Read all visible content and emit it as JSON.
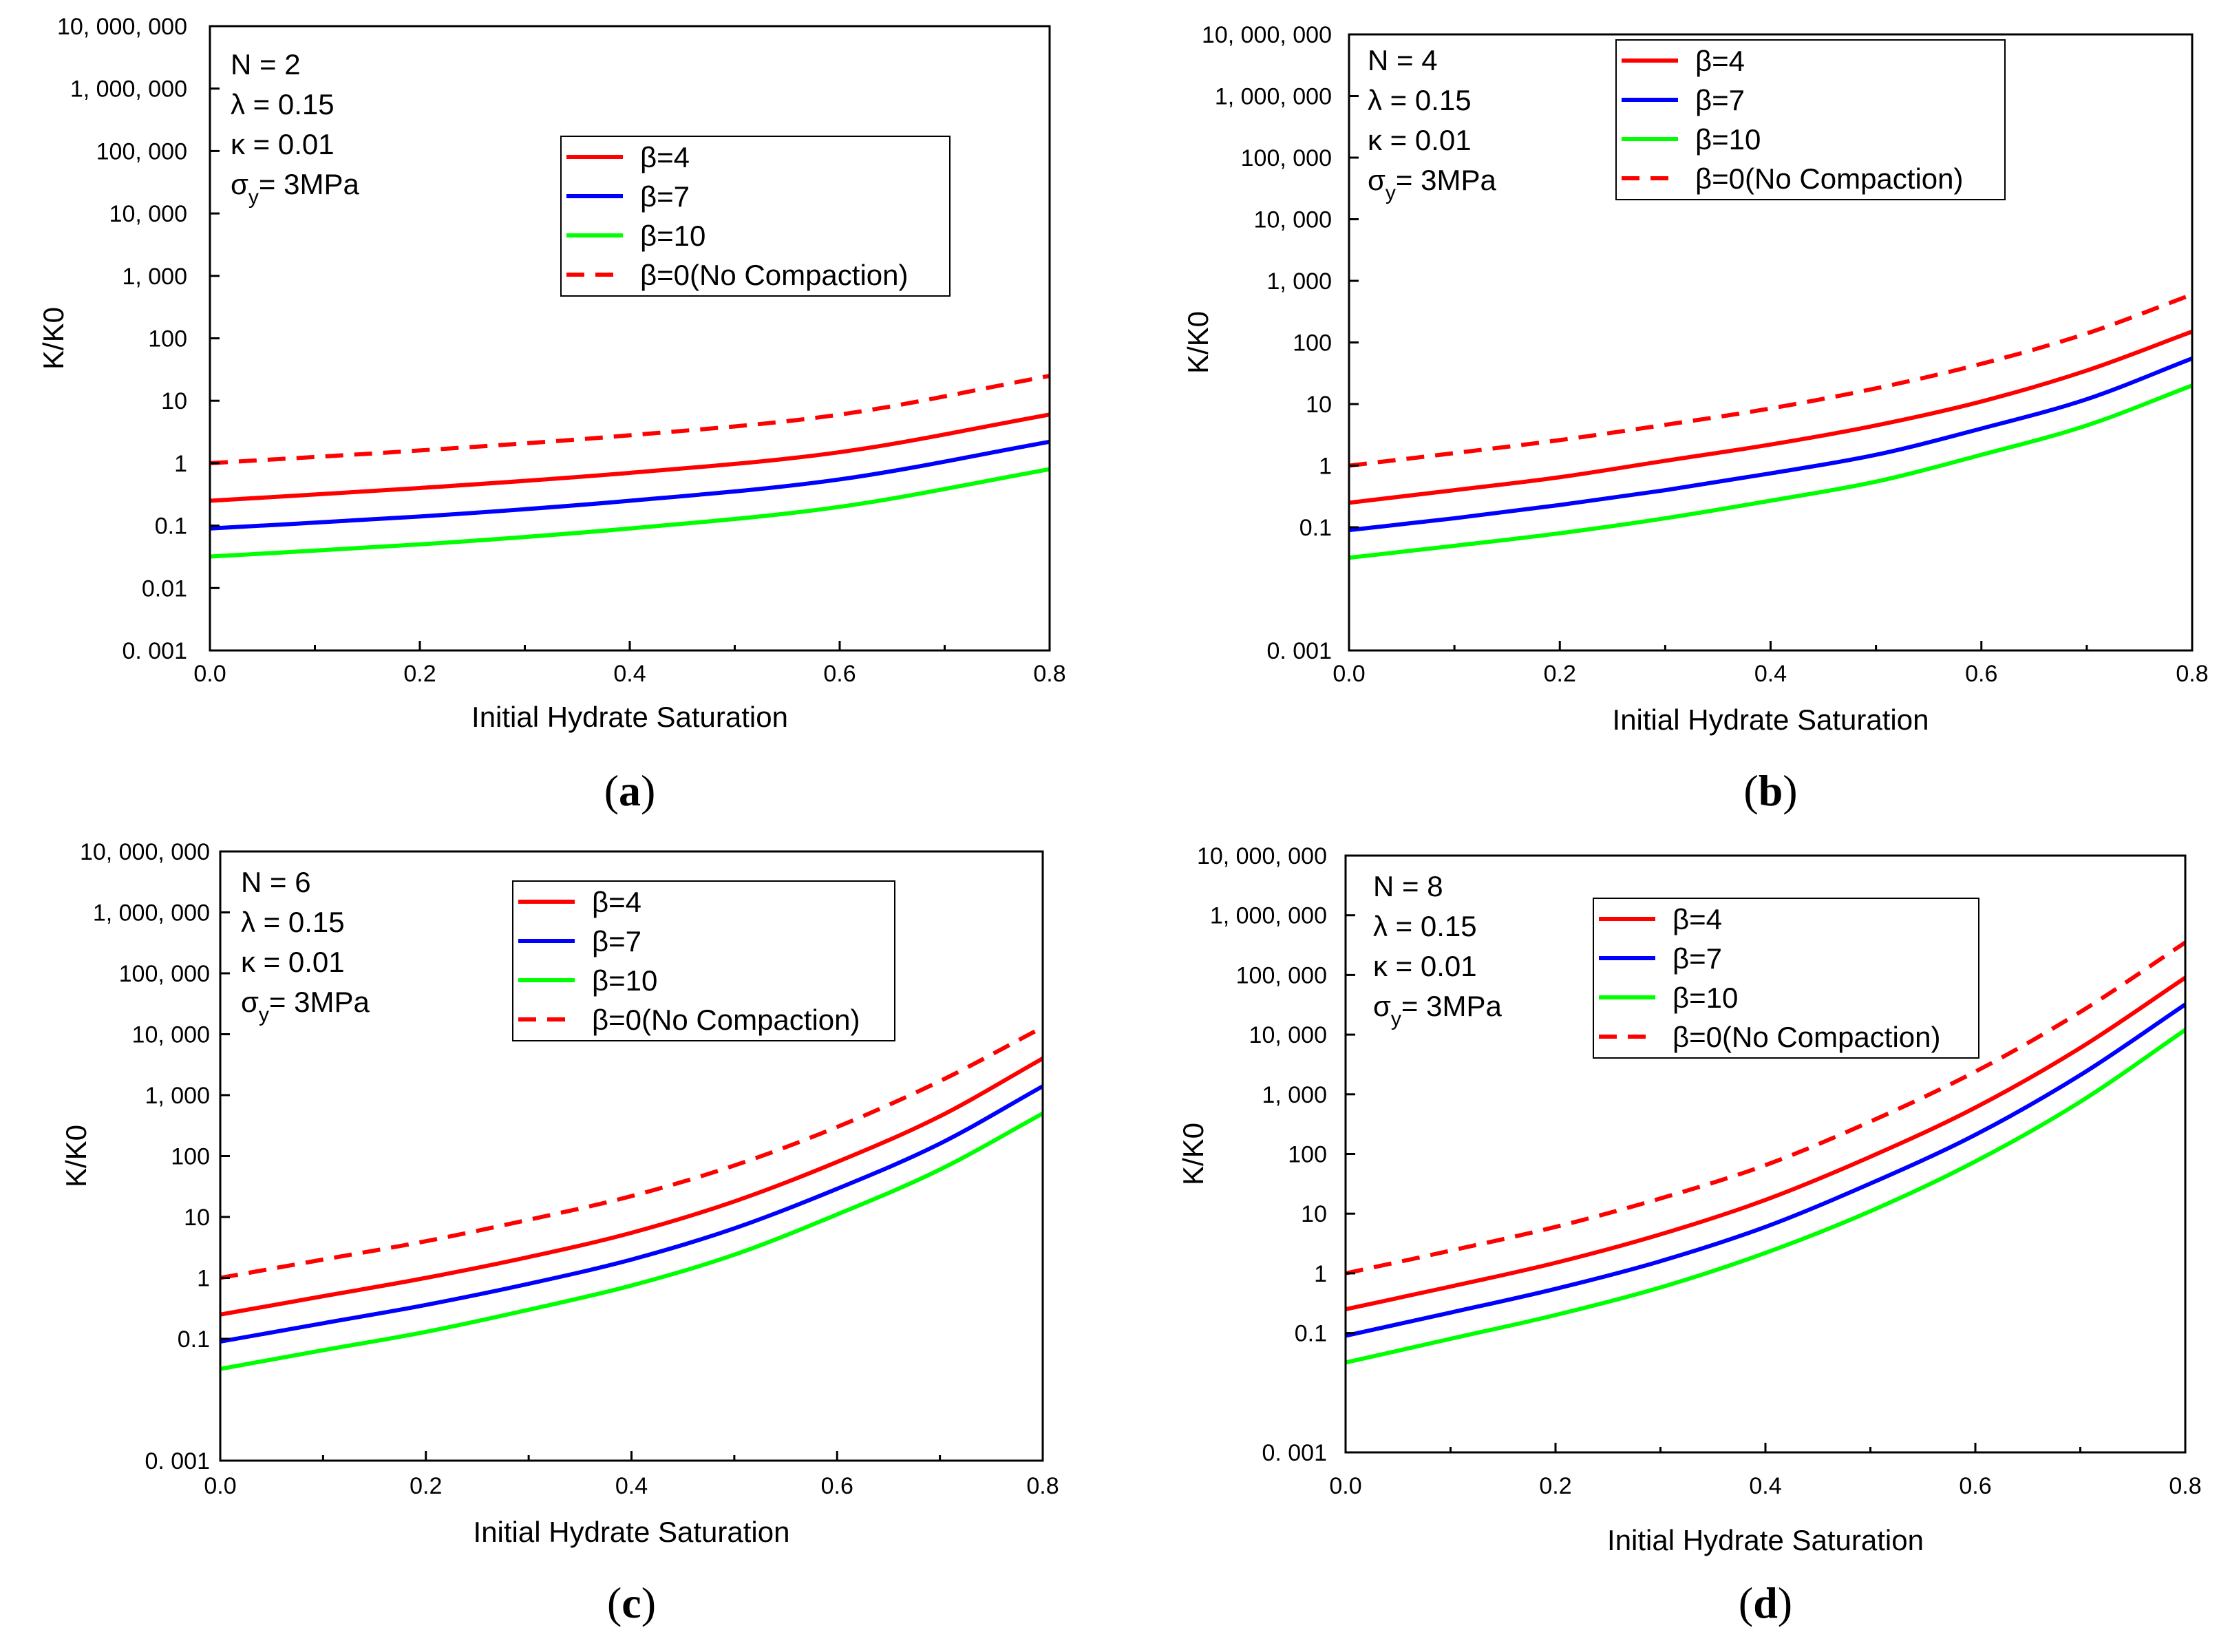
{
  "chart_data": [
    {
      "type": "line",
      "caption_letter": "a",
      "xlabel": "Initial Hydrate Saturation",
      "ylabel": "K/K0",
      "xlim": [
        0,
        0.8
      ],
      "ylim": [
        0.001,
        10000000
      ],
      "y_scale": "log",
      "x_ticks": [
        "0.0",
        "0.2",
        "0.4",
        "0.6",
        "0.8"
      ],
      "y_ticks": [
        {
          "v": 0.001,
          "label": "0. 001"
        },
        {
          "v": 0.01,
          "label": "0.01"
        },
        {
          "v": 0.1,
          "label": "0.1"
        },
        {
          "v": 1,
          "label": "1"
        },
        {
          "v": 10,
          "label": "10"
        },
        {
          "v": 100,
          "label": "100"
        },
        {
          "v": 1000,
          "label": "1, 000"
        },
        {
          "v": 10000,
          "label": "10, 000"
        },
        {
          "v": 100000,
          "label": "100, 000"
        },
        {
          "v": 1000000,
          "label": "1, 000, 000"
        },
        {
          "v": 10000000,
          "label": "10, 000, 000"
        }
      ],
      "params": {
        "N": "N = 2",
        "lambda": "λ  = 0.15",
        "kappa": "κ  = 0.01",
        "sigma": "σ",
        "sigma_sub": "y",
        "sigma_val": "= 3MPa"
      },
      "legend_position": "upper-middle",
      "x": [
        0,
        0.2,
        0.4,
        0.6,
        0.8
      ],
      "series": [
        {
          "name": "β=4",
          "color": "#ff0000",
          "dash": false,
          "values": [
            0.25,
            0.4,
            0.7,
            1.5,
            6
          ]
        },
        {
          "name": "β=7",
          "color": "#0000ff",
          "dash": false,
          "values": [
            0.09,
            0.14,
            0.25,
            0.55,
            2.2
          ]
        },
        {
          "name": "β=10",
          "color": "#00ff00",
          "dash": false,
          "values": [
            0.032,
            0.05,
            0.09,
            0.2,
            0.8
          ]
        },
        {
          "name": "β=0(No Compaction)",
          "color": "#ff0000",
          "dash": true,
          "values": [
            1,
            1.6,
            2.8,
            6,
            25
          ]
        }
      ]
    },
    {
      "type": "line",
      "caption_letter": "b",
      "xlabel": "Initial Hydrate Saturation",
      "ylabel": "K/K0",
      "xlim": [
        0,
        0.8
      ],
      "ylim": [
        0.001,
        10000000
      ],
      "y_scale": "log",
      "x_ticks": [
        "0.0",
        "0.2",
        "0.4",
        "0.6",
        "0.8"
      ],
      "y_ticks": [
        {
          "v": 0.001,
          "label": "0. 001"
        },
        {
          "v": 0.1,
          "label": "0.1"
        },
        {
          "v": 1,
          "label": "1"
        },
        {
          "v": 10,
          "label": "10"
        },
        {
          "v": 100,
          "label": "100"
        },
        {
          "v": 1000,
          "label": "1, 000"
        },
        {
          "v": 10000,
          "label": "10, 000"
        },
        {
          "v": 100000,
          "label": "100, 000"
        },
        {
          "v": 1000000,
          "label": "1, 000, 000"
        },
        {
          "v": 10000000,
          "label": "10, 000, 000"
        }
      ],
      "params": {
        "N": "N = 4",
        "lambda": "λ  = 0.15",
        "kappa": "κ  = 0.01",
        "sigma": "σ",
        "sigma_sub": "y",
        "sigma_val": "= 3MPa"
      },
      "legend_position": "top-right",
      "x": [
        0,
        0.1,
        0.2,
        0.3,
        0.4,
        0.5,
        0.6,
        0.7,
        0.8
      ],
      "series": [
        {
          "name": "β=4",
          "color": "#ff0000",
          "dash": false,
          "values": [
            0.25,
            0.4,
            0.65,
            1.2,
            2.2,
            4.5,
            11,
            35,
            150
          ]
        },
        {
          "name": "β=7",
          "color": "#0000ff",
          "dash": false,
          "values": [
            0.09,
            0.14,
            0.23,
            0.4,
            0.75,
            1.5,
            4,
            12,
            55
          ]
        },
        {
          "name": "β=10",
          "color": "#00ff00",
          "dash": false,
          "values": [
            0.032,
            0.05,
            0.08,
            0.14,
            0.27,
            0.55,
            1.5,
            4.5,
            20
          ]
        },
        {
          "name": "β=0(No Compaction)",
          "color": "#ff0000",
          "dash": true,
          "values": [
            1,
            1.6,
            2.6,
            4.6,
            8.5,
            18,
            45,
            140,
            600
          ]
        }
      ]
    },
    {
      "type": "line",
      "caption_letter": "c",
      "xlabel": "Initial Hydrate Saturation",
      "ylabel": "K/K0",
      "xlim": [
        0,
        0.8
      ],
      "ylim": [
        0.001,
        10000000
      ],
      "y_scale": "log",
      "x_ticks": [
        "0.0",
        "0.2",
        "0.4",
        "0.6",
        "0.8"
      ],
      "y_ticks": [
        {
          "v": 0.001,
          "label": "0. 001"
        },
        {
          "v": 0.1,
          "label": "0.1"
        },
        {
          "v": 1,
          "label": "1"
        },
        {
          "v": 10,
          "label": "10"
        },
        {
          "v": 100,
          "label": "100"
        },
        {
          "v": 1000,
          "label": "1, 000"
        },
        {
          "v": 10000,
          "label": "10, 000"
        },
        {
          "v": 100000,
          "label": "100, 000"
        },
        {
          "v": 1000000,
          "label": "1, 000, 000"
        },
        {
          "v": 10000000,
          "label": "10, 000, 000"
        }
      ],
      "params": {
        "N": "N = 6",
        "lambda": "λ  = 0.15",
        "kappa": "κ  = 0.01",
        "sigma": "σ",
        "sigma_sub": "y",
        "sigma_val": "= 3MPa"
      },
      "legend_position": "top-right",
      "x": [
        0,
        0.1,
        0.2,
        0.3,
        0.4,
        0.5,
        0.6,
        0.7,
        0.8
      ],
      "series": [
        {
          "name": "β=4",
          "color": "#ff0000",
          "dash": false,
          "values": [
            0.25,
            0.5,
            1,
            2.2,
            5.5,
            18,
            80,
            450,
            4000
          ]
        },
        {
          "name": "β=7",
          "color": "#0000ff",
          "dash": false,
          "values": [
            0.09,
            0.18,
            0.36,
            0.8,
            2,
            6.5,
            29,
            160,
            1400
          ]
        },
        {
          "name": "β=10",
          "color": "#00ff00",
          "dash": false,
          "values": [
            0.032,
            0.065,
            0.13,
            0.3,
            0.75,
            2.4,
            11,
            60,
            500
          ]
        },
        {
          "name": "β=0(No Compaction)",
          "color": "#ff0000",
          "dash": true,
          "values": [
            1,
            2,
            4,
            9,
            22,
            70,
            300,
            1700,
            13000
          ]
        }
      ]
    },
    {
      "type": "line",
      "caption_letter": "d",
      "xlabel": "Initial Hydrate Saturation",
      "ylabel": "K/K0",
      "xlim": [
        0,
        0.8
      ],
      "ylim": [
        0.001,
        10000000
      ],
      "y_scale": "log",
      "x_ticks": [
        "0.0",
        "0.2",
        "0.4",
        "0.6",
        "0.8"
      ],
      "y_ticks": [
        {
          "v": 0.001,
          "label": "0. 001"
        },
        {
          "v": 0.1,
          "label": "0.1"
        },
        {
          "v": 1,
          "label": "1"
        },
        {
          "v": 10,
          "label": "10"
        },
        {
          "v": 100,
          "label": "100"
        },
        {
          "v": 1000,
          "label": "1, 000"
        },
        {
          "v": 10000,
          "label": "10, 000"
        },
        {
          "v": 100000,
          "label": "100, 000"
        },
        {
          "v": 1000000,
          "label": "1, 000, 000"
        },
        {
          "v": 10000000,
          "label": "10, 000, 000"
        }
      ],
      "params": {
        "N": "N = 8",
        "lambda": "λ  = 0.15",
        "kappa": "κ  = 0.01",
        "sigma": "σ",
        "sigma_sub": "y",
        "sigma_val": "= 3MPa"
      },
      "legend_position": "upper-middle",
      "x": [
        0,
        0.1,
        0.2,
        0.3,
        0.4,
        0.5,
        0.6,
        0.7,
        0.8
      ],
      "series": [
        {
          "name": "β=4",
          "color": "#ff0000",
          "dash": false,
          "values": [
            0.25,
            0.6,
            1.5,
            4.5,
            17,
            90,
            600,
            6000,
            90000
          ]
        },
        {
          "name": "β=7",
          "color": "#0000ff",
          "dash": false,
          "values": [
            0.09,
            0.22,
            0.55,
            1.6,
            6,
            32,
            210,
            2100,
            32000
          ]
        },
        {
          "name": "β=10",
          "color": "#00ff00",
          "dash": false,
          "values": [
            0.032,
            0.08,
            0.2,
            0.58,
            2.2,
            11,
            75,
            750,
            12000
          ]
        },
        {
          "name": "β=0(No Compaction)",
          "color": "#ff0000",
          "dash": true,
          "values": [
            1,
            2.4,
            6,
            18,
            65,
            350,
            2400,
            24000,
            350000
          ]
        }
      ]
    }
  ]
}
